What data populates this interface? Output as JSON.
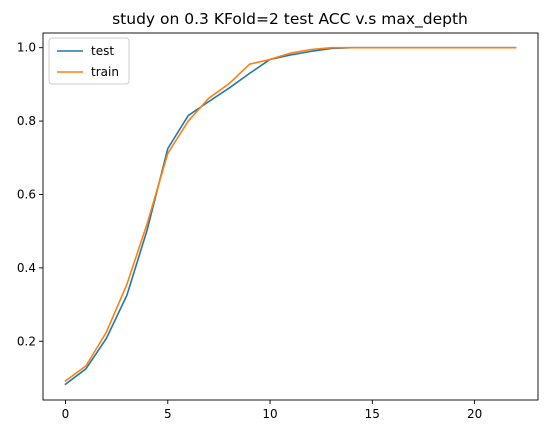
{
  "chart_data": {
    "type": "line",
    "title": "study on 0.3 KFold=2 test ACC v.s max_depth",
    "xlabel": "",
    "ylabel": "",
    "xlim": [
      -1.1,
      23.1
    ],
    "ylim": [
      0.04,
      1.04
    ],
    "x_ticks": [
      0,
      5,
      10,
      15,
      20
    ],
    "y_ticks": [
      0.2,
      0.4,
      0.6,
      0.8,
      1.0
    ],
    "x_tick_labels": [
      "0",
      "5",
      "10",
      "15",
      "20"
    ],
    "y_tick_labels": [
      "0.2",
      "0.4",
      "0.6",
      "0.8",
      "1.0"
    ],
    "grid": false,
    "legend_position": "top-left",
    "x": [
      0,
      1,
      2,
      3,
      4,
      5,
      6,
      7,
      8,
      9,
      10,
      11,
      12,
      13,
      14,
      15,
      16,
      17,
      18,
      19,
      20,
      21,
      22
    ],
    "series": [
      {
        "name": "test",
        "color": "#1f77b4",
        "values": [
          0.083,
          0.125,
          0.208,
          0.325,
          0.505,
          0.725,
          0.815,
          0.853,
          0.89,
          0.93,
          0.968,
          0.98,
          0.99,
          0.998,
          1.0,
          1.0,
          1.0,
          1.0,
          1.0,
          1.0,
          1.0,
          1.0,
          1.0
        ]
      },
      {
        "name": "train",
        "color": "#ff7f0e",
        "values": [
          0.092,
          0.133,
          0.225,
          0.355,
          0.522,
          0.712,
          0.8,
          0.862,
          0.902,
          0.955,
          0.968,
          0.985,
          0.995,
          1.0,
          1.0,
          1.0,
          1.0,
          1.0,
          1.0,
          1.0,
          1.0,
          1.0,
          1.0
        ]
      }
    ]
  }
}
